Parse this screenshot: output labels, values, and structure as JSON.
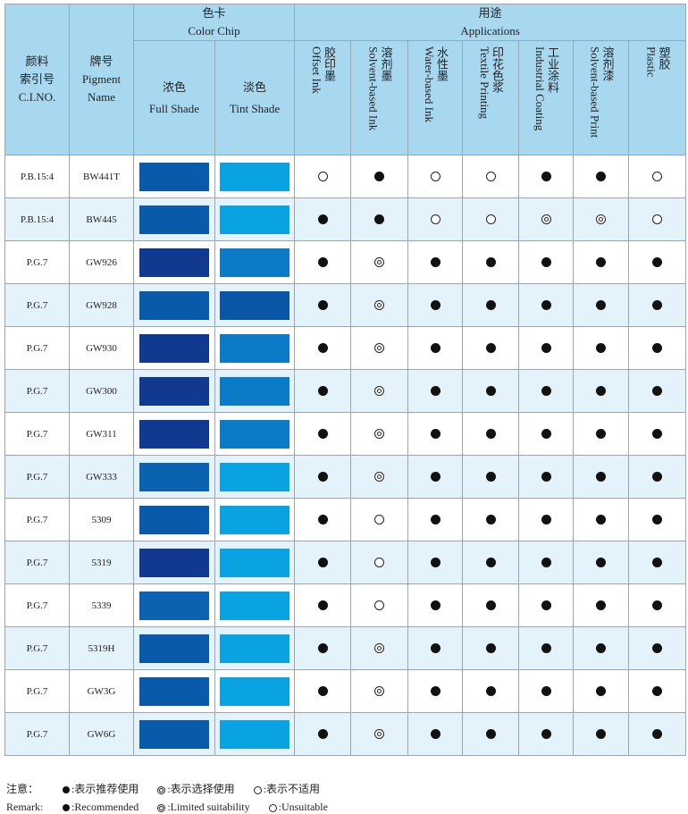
{
  "header": {
    "cino": [
      "颜料",
      "索引号",
      "C.I.NO."
    ],
    "pname": [
      "牌号",
      "Pigment",
      "Name"
    ],
    "chip_cn": "色卡",
    "chip_en": "Color Chip",
    "full_cn": "浓色",
    "full_en": "Full Shade",
    "tint_cn": "淡色",
    "tint_en": "Tint Shade",
    "app_cn": "用途",
    "app_en": "Applications",
    "apps": [
      {
        "cn": "胶印墨",
        "en": "Offset Ink"
      },
      {
        "cn": "溶剂墨",
        "en": "Solvent-based Ink"
      },
      {
        "cn": "水性墨",
        "en": "Water-based Ink"
      },
      {
        "cn": "印花色浆",
        "en": "Textile Printing"
      },
      {
        "cn": "工业涂料",
        "en": "Industrial Coating"
      },
      {
        "cn": "溶剂漆",
        "en": "Solvent-based Print"
      },
      {
        "cn": "塑胶",
        "en": "Plastic"
      }
    ]
  },
  "rows": [
    {
      "cino": "P.B.15:4",
      "name": "BW441T",
      "full": "#0a5aab",
      "tint": "#0aa3e2",
      "apps": [
        "U",
        "R",
        "U",
        "U",
        "R",
        "R",
        "U"
      ]
    },
    {
      "cino": "P.B.15:4",
      "name": "BW445",
      "full": "#0a5aab",
      "tint": "#0aa3e2",
      "apps": [
        "R",
        "R",
        "U",
        "U",
        "L",
        "L",
        "U"
      ]
    },
    {
      "cino": "P.G.7",
      "name": "GW926",
      "full": "#123990",
      "tint": "#0b7bc7",
      "apps": [
        "R",
        "L",
        "R",
        "R",
        "R",
        "R",
        "R"
      ]
    },
    {
      "cino": "P.G.7",
      "name": "GW928",
      "full": "#0a5aab",
      "tint": "#0b55a6",
      "apps": [
        "R",
        "L",
        "R",
        "R",
        "R",
        "R",
        "R"
      ]
    },
    {
      "cino": "P.G.7",
      "name": "GW930",
      "full": "#123990",
      "tint": "#0b7bc7",
      "apps": [
        "R",
        "L",
        "R",
        "R",
        "R",
        "R",
        "R"
      ]
    },
    {
      "cino": "P.G.7",
      "name": "GW300",
      "full": "#123990",
      "tint": "#0b7bc7",
      "apps": [
        "R",
        "L",
        "R",
        "R",
        "R",
        "R",
        "R"
      ]
    },
    {
      "cino": "P.G.7",
      "name": "GW311",
      "full": "#123990",
      "tint": "#0b7bc7",
      "apps": [
        "R",
        "L",
        "R",
        "R",
        "R",
        "R",
        "R"
      ]
    },
    {
      "cino": "P.G.7",
      "name": "GW333",
      "full": "#0a62b0",
      "tint": "#0aa3e2",
      "apps": [
        "R",
        "L",
        "R",
        "R",
        "R",
        "R",
        "R"
      ]
    },
    {
      "cino": "P.G.7",
      "name": "5309",
      "full": "#0a5aab",
      "tint": "#0aa3e2",
      "apps": [
        "R",
        "U",
        "R",
        "R",
        "R",
        "R",
        "R"
      ]
    },
    {
      "cino": "P.G.7",
      "name": "5319",
      "full": "#123990",
      "tint": "#0aa3e2",
      "apps": [
        "R",
        "U",
        "R",
        "R",
        "R",
        "R",
        "R"
      ]
    },
    {
      "cino": "P.G.7",
      "name": "5339",
      "full": "#0a62b0",
      "tint": "#0aa3e2",
      "apps": [
        "R",
        "U",
        "R",
        "R",
        "R",
        "R",
        "R"
      ]
    },
    {
      "cino": "P.G.7",
      "name": "5319H",
      "full": "#0a5aab",
      "tint": "#0aa3e2",
      "apps": [
        "R",
        "L",
        "R",
        "R",
        "R",
        "R",
        "R"
      ]
    },
    {
      "cino": "P.G.7",
      "name": "GW3G",
      "full": "#0a5aab",
      "tint": "#0aa3e2",
      "apps": [
        "R",
        "L",
        "R",
        "R",
        "R",
        "R",
        "R"
      ]
    },
    {
      "cino": "P.G.7",
      "name": "GW6G",
      "full": "#0a5aab",
      "tint": "#0aa3e2",
      "apps": [
        "R",
        "L",
        "R",
        "R",
        "R",
        "R",
        "R"
      ]
    }
  ],
  "legend": {
    "cn_label": "注意：",
    "en_label": "Remark:",
    "cn_items": [
      ":表示推荐使用",
      ":表示选择使用",
      ":表示不适用"
    ],
    "en_items": [
      ":Recommended",
      ":Limited suitability",
      ":Unsuitable"
    ]
  }
}
